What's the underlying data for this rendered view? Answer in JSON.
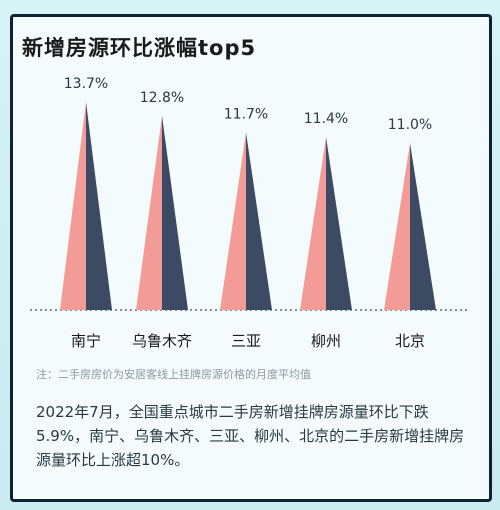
{
  "header": {
    "title": "新增房源环比涨幅top5"
  },
  "chart_data": {
    "type": "bar",
    "categories": [
      "南宁",
      "乌鲁木齐",
      "三亚",
      "柳州",
      "北京"
    ],
    "values": [
      13.7,
      12.8,
      11.7,
      11.4,
      11.0
    ],
    "value_labels": [
      "13.7%",
      "12.8%",
      "11.7%",
      "11.4%",
      "11.0%"
    ],
    "title": "新增房源环比涨幅top5",
    "xlabel": "",
    "ylabel": "",
    "ylim": [
      0,
      14.5
    ],
    "grid": false,
    "colors": {
      "light": "#f29b97",
      "dark": "#3d4a63",
      "baseline": "#5c6b73"
    }
  },
  "footer": {
    "note": "注：二手房房价为安居客线上挂牌房源价格的月度平均值",
    "description": "2022年7月，全国重点城市二手房新增挂牌房源量环比下跌5.9%，南宁、乌鲁木齐、三亚、柳州、北京的二手房新增挂牌房源量环比上涨超10%。"
  }
}
